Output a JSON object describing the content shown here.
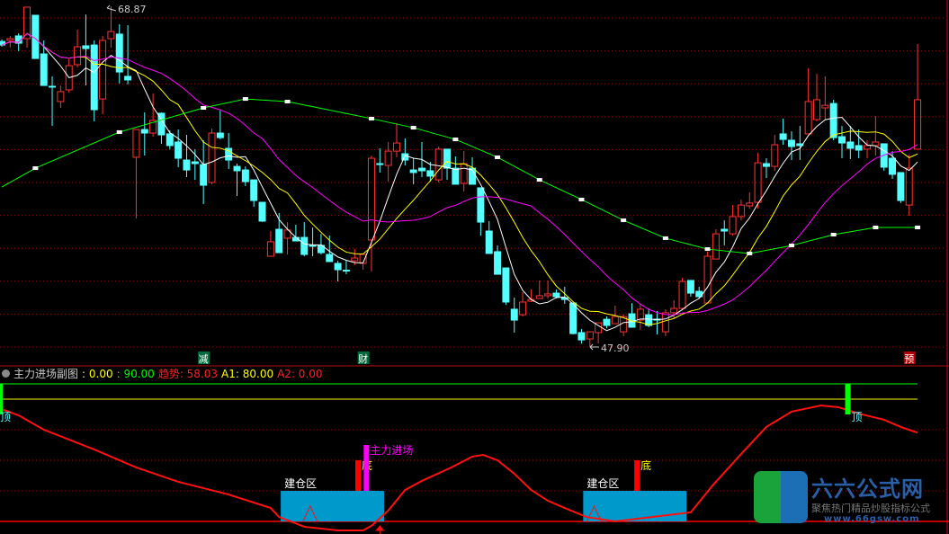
{
  "chart_data": [
    {
      "type": "candlestick",
      "title": "",
      "colors": {
        "up": "#ff3232",
        "down": "#54ffff",
        "ma_short": "#ffffff",
        "ma_mid": "#ffff00",
        "ma_long": "#ff00ff",
        "ma_trend": "#00ff00"
      },
      "ma_periods": [
        5,
        10,
        20
      ],
      "high_label": "68.87",
      "low_label": "47.90",
      "grid": "dotted",
      "candles": [
        [
          66.71,
          66.83,
          66.38,
          66.49
        ],
        [
          66.77,
          67.05,
          66.33,
          66.88
        ],
        [
          67.05,
          67.21,
          66.11,
          66.6
        ],
        [
          66.88,
          68.82,
          66.33,
          68.82
        ],
        [
          68.32,
          68.32,
          65.66,
          65.66
        ],
        [
          65.94,
          66.77,
          64.0,
          64.0
        ],
        [
          63.95,
          64.56,
          61.51,
          63.9
        ],
        [
          63.01,
          63.99,
          62.62,
          63.62
        ],
        [
          63.73,
          65.66,
          63.56,
          65.22
        ],
        [
          65.28,
          67.43,
          65.11,
          66.38
        ],
        [
          66.44,
          68.37,
          64.0,
          66.27
        ],
        [
          66.49,
          66.77,
          61.79,
          62.51
        ],
        [
          63.17,
          67.05,
          62.23,
          66.77
        ],
        [
          66.88,
          68.87,
          66.33,
          67.32
        ],
        [
          67.16,
          67.77,
          64.12,
          64.83
        ],
        [
          64.56,
          67.71,
          64.06,
          64.34
        ],
        [
          59.58,
          61.29,
          55.82,
          61.29
        ],
        [
          61.29,
          62.34,
          59.69,
          61.07
        ],
        [
          61.07,
          63.51,
          60.85,
          61.85
        ],
        [
          62.29,
          62.34,
          60.41,
          60.96
        ],
        [
          61.02,
          61.24,
          60.08,
          60.3
        ],
        [
          60.52,
          61.29,
          58.97,
          59.52
        ],
        [
          59.41,
          60.96,
          58.36,
          58.8
        ],
        [
          59.3,
          60.08,
          58.19,
          59.19
        ],
        [
          59.13,
          60.63,
          56.7,
          57.86
        ],
        [
          58.03,
          61.35,
          57.92,
          61.07
        ],
        [
          61.07,
          62.45,
          60.68,
          60.79
        ],
        [
          60.13,
          61.07,
          58.86,
          59.41
        ],
        [
          59.02,
          59.19,
          57.2,
          58.75
        ],
        [
          58.8,
          59.02,
          57.81,
          58.08
        ],
        [
          58.19,
          58.19,
          56.53,
          56.92
        ],
        [
          56.81,
          56.81,
          55.6,
          55.65
        ],
        [
          53.49,
          55.04,
          53.49,
          54.38
        ],
        [
          55.15,
          56.15,
          53.71,
          53.71
        ],
        [
          54.6,
          55.59,
          53.6,
          55.1
        ],
        [
          54.65,
          55.43,
          54.43,
          54.43
        ],
        [
          54.65,
          55.59,
          53.49,
          53.6
        ],
        [
          54.16,
          55.26,
          53.49,
          54.1
        ],
        [
          54.16,
          54.87,
          53.6,
          53.71
        ],
        [
          53.6,
          54.76,
          53.16,
          53.16
        ],
        [
          53.05,
          53.21,
          51.94,
          52.66
        ],
        [
          52.63,
          53.21,
          52.38,
          52.58
        ],
        [
          53.21,
          53.93,
          52.94,
          53.38
        ],
        [
          53.05,
          53.6,
          52.66,
          53.6
        ],
        [
          54.49,
          59.69,
          52.55,
          59.52
        ],
        [
          59.19,
          60.13,
          58.64,
          59.13
        ],
        [
          59.08,
          60.52,
          58.08,
          59.96
        ],
        [
          59.96,
          61.68,
          59.58,
          60.46
        ],
        [
          59.8,
          60.74,
          59.08,
          59.41
        ],
        [
          58.8,
          59.52,
          57.92,
          58.64
        ],
        [
          58.91,
          60.52,
          58.36,
          58.75
        ],
        [
          58.75,
          59.3,
          58.08,
          58.42
        ],
        [
          58.19,
          60.24,
          58.03,
          60.08
        ],
        [
          60.08,
          60.08,
          58.19,
          58.91
        ],
        [
          58.91,
          59.63,
          57.92,
          57.92
        ],
        [
          57.97,
          59.96,
          57.47,
          59.19
        ],
        [
          58.91,
          59.58,
          57.92,
          57.92
        ],
        [
          57.7,
          57.7,
          54.76,
          55.59
        ],
        [
          55.04,
          55.65,
          53.66,
          53.66
        ],
        [
          53.77,
          54.16,
          52.38,
          52.38
        ],
        [
          52.77,
          52.77,
          50.5,
          50.67
        ],
        [
          50.23,
          50.94,
          48.79,
          49.56
        ],
        [
          49.89,
          51.28,
          49.78,
          50.67
        ],
        [
          50.72,
          51.44,
          50.67,
          50.83
        ],
        [
          50.89,
          52.0,
          50.89,
          51.06
        ],
        [
          51.06,
          52.0,
          50.89,
          51.17
        ],
        [
          51.22,
          51.44,
          50.89,
          51.0
        ],
        [
          50.94,
          51.61,
          50.56,
          50.83
        ],
        [
          50.61,
          50.61,
          48.68,
          48.73
        ],
        [
          48.79,
          49.01,
          48.12,
          48.34
        ],
        [
          48.4,
          48.84,
          47.9,
          48.84
        ],
        [
          48.79,
          49.39,
          48.12,
          49.39
        ],
        [
          49.61,
          49.78,
          49.06,
          49.23
        ],
        [
          49.34,
          50.45,
          49.34,
          49.78
        ],
        [
          48.84,
          49.89,
          48.57,
          49.78
        ],
        [
          49.95,
          50.61,
          49.12,
          49.12
        ],
        [
          49.56,
          50.56,
          48.95,
          50.23
        ],
        [
          49.89,
          50.28,
          49.12,
          49.23
        ],
        [
          49.62,
          50.12,
          48.68,
          49.56
        ],
        [
          48.84,
          50.23,
          48.57,
          50.01
        ],
        [
          50.01,
          50.78,
          49.67,
          50.28
        ],
        [
          50.28,
          52.16,
          50.17,
          51.94
        ],
        [
          52.0,
          52.0,
          51.0,
          51.22
        ],
        [
          51.33,
          51.61,
          50.89,
          51.0
        ],
        [
          50.61,
          53.77,
          50.61,
          53.49
        ],
        [
          53.32,
          55.15,
          53.32,
          54.87
        ],
        [
          55.15,
          55.7,
          54.16,
          55.04
        ],
        [
          54.87,
          56.64,
          54.76,
          55.93
        ],
        [
          55.93,
          56.98,
          55.7,
          56.64
        ],
        [
          56.59,
          57.42,
          56.42,
          56.76
        ],
        [
          56.81,
          59.85,
          56.42,
          59.24
        ],
        [
          59.19,
          59.52,
          58.3,
          59.02
        ],
        [
          59.02,
          60.96,
          58.75,
          60.35
        ],
        [
          61.02,
          61.96,
          60.35,
          60.68
        ],
        [
          60.63,
          61.18,
          59.41,
          60.24
        ],
        [
          60.41,
          61.51,
          59.41,
          60.3
        ],
        [
          61.02,
          65.06,
          61.02,
          63.01
        ],
        [
          61.9,
          64.72,
          61.79,
          63.12
        ],
        [
          62.62,
          64.56,
          61.9,
          62.78
        ],
        [
          62.89,
          63.12,
          60.63,
          60.79
        ],
        [
          60.85,
          61.51,
          59.52,
          60.46
        ],
        [
          60.52,
          61.51,
          59.47,
          60.13
        ],
        [
          60.3,
          61.29,
          59.52,
          60.02
        ],
        [
          60.08,
          60.63,
          59.52,
          60.3
        ],
        [
          60.3,
          62.12,
          59.69,
          60.52
        ],
        [
          60.41,
          60.41,
          58.75,
          58.97
        ],
        [
          59.52,
          59.96,
          58.25,
          58.53
        ],
        [
          58.64,
          58.64,
          56.76,
          56.92
        ],
        [
          56.64,
          59.74,
          55.98,
          58.91
        ],
        [
          60.08,
          66.55,
          60.08,
          63.12
        ]
      ],
      "ma_trend": {
        "index": [
          0,
          4,
          14,
          24,
          29,
          34,
          44,
          49,
          54,
          59,
          64,
          69,
          74,
          79,
          84,
          89,
          94,
          99,
          104,
          109
        ],
        "values": [
          57.75,
          58.91,
          61.13,
          62.62,
          63.17,
          63.01,
          61.96,
          61.4,
          60.68,
          59.58,
          58.19,
          56.98,
          55.7,
          54.6,
          53.93,
          53.66,
          54.15,
          54.82,
          55.26,
          55.26
        ]
      },
      "signals": [
        {
          "index": 24,
          "label": "减",
          "color": "#006a3c"
        },
        {
          "index": 43,
          "label": "财",
          "color": "#006a3c"
        },
        {
          "index": 108,
          "label": "预",
          "color": "#b00000"
        }
      ]
    },
    {
      "type": "line",
      "title": "主力进场副图",
      "header": [
        {
          "text": ": 0.00",
          "color": "#ffff00"
        },
        {
          "text": ": 90.00",
          "color": "#00ff00"
        },
        {
          "text": "趋势: 58.03",
          "color": "#ff2020"
        },
        {
          "text": "A1: 80.00",
          "color": "#ffff00"
        },
        {
          "text": "A2: 0.00",
          "color": "#ff2020"
        }
      ],
      "ylim": [
        0,
        90
      ],
      "levels": [
        {
          "value": 90,
          "color": "#00ff00"
        },
        {
          "value": 80,
          "color": "#ffff00"
        },
        {
          "value": 0,
          "color": "#ff0000"
        }
      ],
      "trend": {
        "index": [
          0,
          2,
          5,
          11,
          16,
          21,
          27,
          32,
          33,
          36,
          40,
          43,
          44,
          46,
          48,
          50,
          53.5,
          56,
          57.3,
          59,
          61,
          63,
          65,
          67,
          69.6,
          73,
          82,
          84.6,
          88,
          91,
          94,
          97.5,
          99.6,
          102,
          105,
          107,
          109
        ],
        "values": [
          73.5,
          69.4,
          60,
          47.1,
          35.3,
          25.9,
          17.6,
          8.8,
          2.9,
          -3.5,
          -5.9,
          -5.9,
          -2.9,
          7.1,
          20.6,
          26.5,
          35.3,
          42.4,
          43.5,
          40,
          31.2,
          20.6,
          13.5,
          8.8,
          2.9,
          0,
          5.9,
          23.5,
          44.1,
          61.8,
          71.8,
          75.9,
          74.7,
          70.6,
          66.5,
          61.8,
          58.03
        ]
      },
      "zones": [
        {
          "label": "建仓区",
          "start": 33.2,
          "end": 45.5,
          "top": 20,
          "color": "#0099cc",
          "triangle": 36.7
        },
        {
          "label": "建仓区",
          "start": 69.2,
          "end": 81.5,
          "top": 20,
          "color": "#0099cc",
          "triangle": 70.5
        }
      ],
      "bars": [
        {
          "index": 42.4,
          "from": 20,
          "to": 40,
          "color": "#ff0000",
          "label": "底",
          "label_color": "#ffff00"
        },
        {
          "index": 43.4,
          "from": 20,
          "to": 50,
          "color": "#ff00ff",
          "label": "主力进场",
          "label_color": "#ff00ff"
        },
        {
          "index": 75.6,
          "from": 20,
          "to": 40,
          "color": "#ff0000",
          "label": "底",
          "label_color": "#ffff00"
        },
        {
          "index": 0,
          "from": 70,
          "to": 90,
          "color": "#00ff00",
          "label": "顶",
          "label_color": "#54ffff"
        },
        {
          "index": 100.7,
          "from": 70,
          "to": 90,
          "color": "#00ff00",
          "label": "顶",
          "label_color": "#54ffff"
        }
      ],
      "arrow_index": 45
    }
  ],
  "logo": {
    "name": "六六公式网",
    "slogan": "聚焦热门精品炒股指标公式",
    "url": "www.66gsw.com"
  }
}
